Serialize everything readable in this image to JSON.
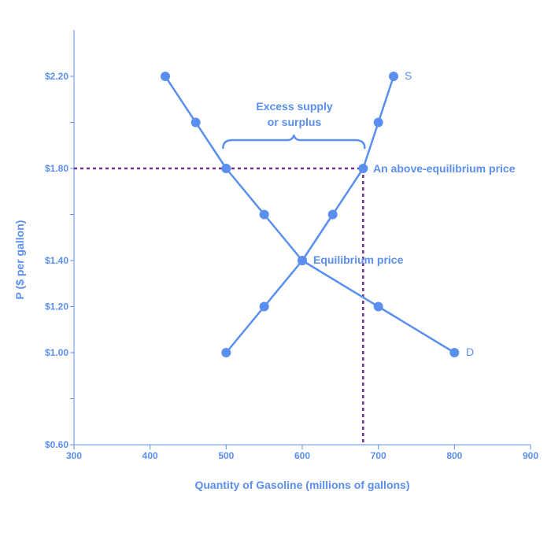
{
  "chart_data": {
    "type": "line",
    "xlabel": "Quantity of Gasoline (millions of gallons)",
    "ylabel": "P ($ per gallon)",
    "xlim": [
      300,
      900
    ],
    "ylim": [
      0.6,
      2.4
    ],
    "x_ticks": [
      300,
      400,
      500,
      600,
      700,
      800,
      900
    ],
    "x_tick_labels": [
      "300",
      "400",
      "500",
      "600",
      "700",
      "800",
      "900"
    ],
    "y_ticks": [
      0.6,
      0.8,
      1.0,
      1.2,
      1.4,
      1.6,
      1.8,
      2.0,
      2.2
    ],
    "y_tick_labels": [
      "$0.60",
      "",
      "$1.00",
      "$1.20",
      "$1.40",
      "",
      "$1.80",
      "",
      "$2.20"
    ],
    "grid": false,
    "series": [
      {
        "name": "S",
        "points": [
          [
            500,
            1.0
          ],
          [
            550,
            1.2
          ],
          [
            600,
            1.4
          ],
          [
            640,
            1.6
          ],
          [
            680,
            1.8
          ],
          [
            700,
            2.0
          ],
          [
            720,
            2.2
          ]
        ]
      },
      {
        "name": "D",
        "points": [
          [
            420,
            2.2
          ],
          [
            460,
            2.0
          ],
          [
            500,
            1.8
          ],
          [
            550,
            1.6
          ],
          [
            600,
            1.4
          ],
          [
            700,
            1.2
          ],
          [
            800,
            1.0
          ]
        ]
      }
    ],
    "reference_lines": {
      "price": 1.8,
      "quantity": 680
    },
    "annotations": {
      "surplus_line1": "Excess supply",
      "surplus_line2": "or surplus",
      "above_eq": "An above-equilibrium price",
      "equilibrium": "Equilibrium price"
    },
    "colors": {
      "curve": "#5b8fef",
      "axis_text": "#5b8fef",
      "reference": "#7b2d8e"
    }
  }
}
